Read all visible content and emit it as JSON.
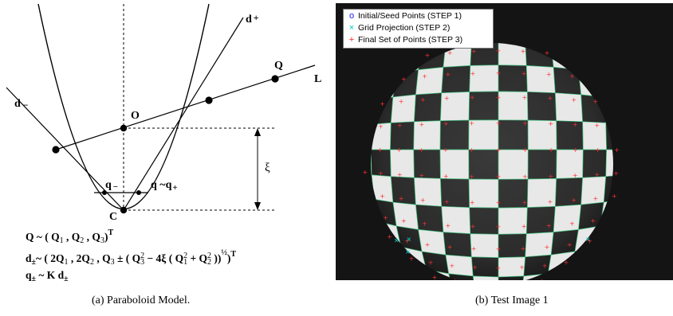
{
  "captions": {
    "a": "(a) Paraboloid Model.",
    "b": "(b) Test Image 1"
  },
  "diagram": {
    "labels": {
      "d_plus": "d",
      "d_plus_sub": "+",
      "d_minus": "d",
      "d_minus_sub": "−",
      "Q": "Q",
      "L": "L",
      "O": "O",
      "xi": "ξ",
      "C": "C",
      "q_minus": "q",
      "q_minus_sub": "−",
      "q_plus": "q ~q",
      "q_plus_sub": "+"
    },
    "equations": {
      "eq1": "Q ~ ( Q 1 , Q 2 , Q 3 ) T",
      "eq2": "d ± ~ ( 2Q 1 , 2Q 2 , Q 3 ± ( Q 3 2 − 4ξ ( Q 1 2 + Q 2 2 ) ) 1/2 ) T",
      "eq3": "q ± ~ K d ±"
    }
  },
  "photo": {
    "legend": [
      {
        "marker": "o",
        "label": "Initial/Seed Points (STEP 1)",
        "color": "#1a1aff"
      },
      {
        "marker": "×",
        "label": "Grid Projection (STEP 2)",
        "color": "#00e5e5"
      },
      {
        "marker": "+",
        "label": "Final Set of Points (STEP 3)",
        "color": "#ff2020"
      }
    ]
  }
}
